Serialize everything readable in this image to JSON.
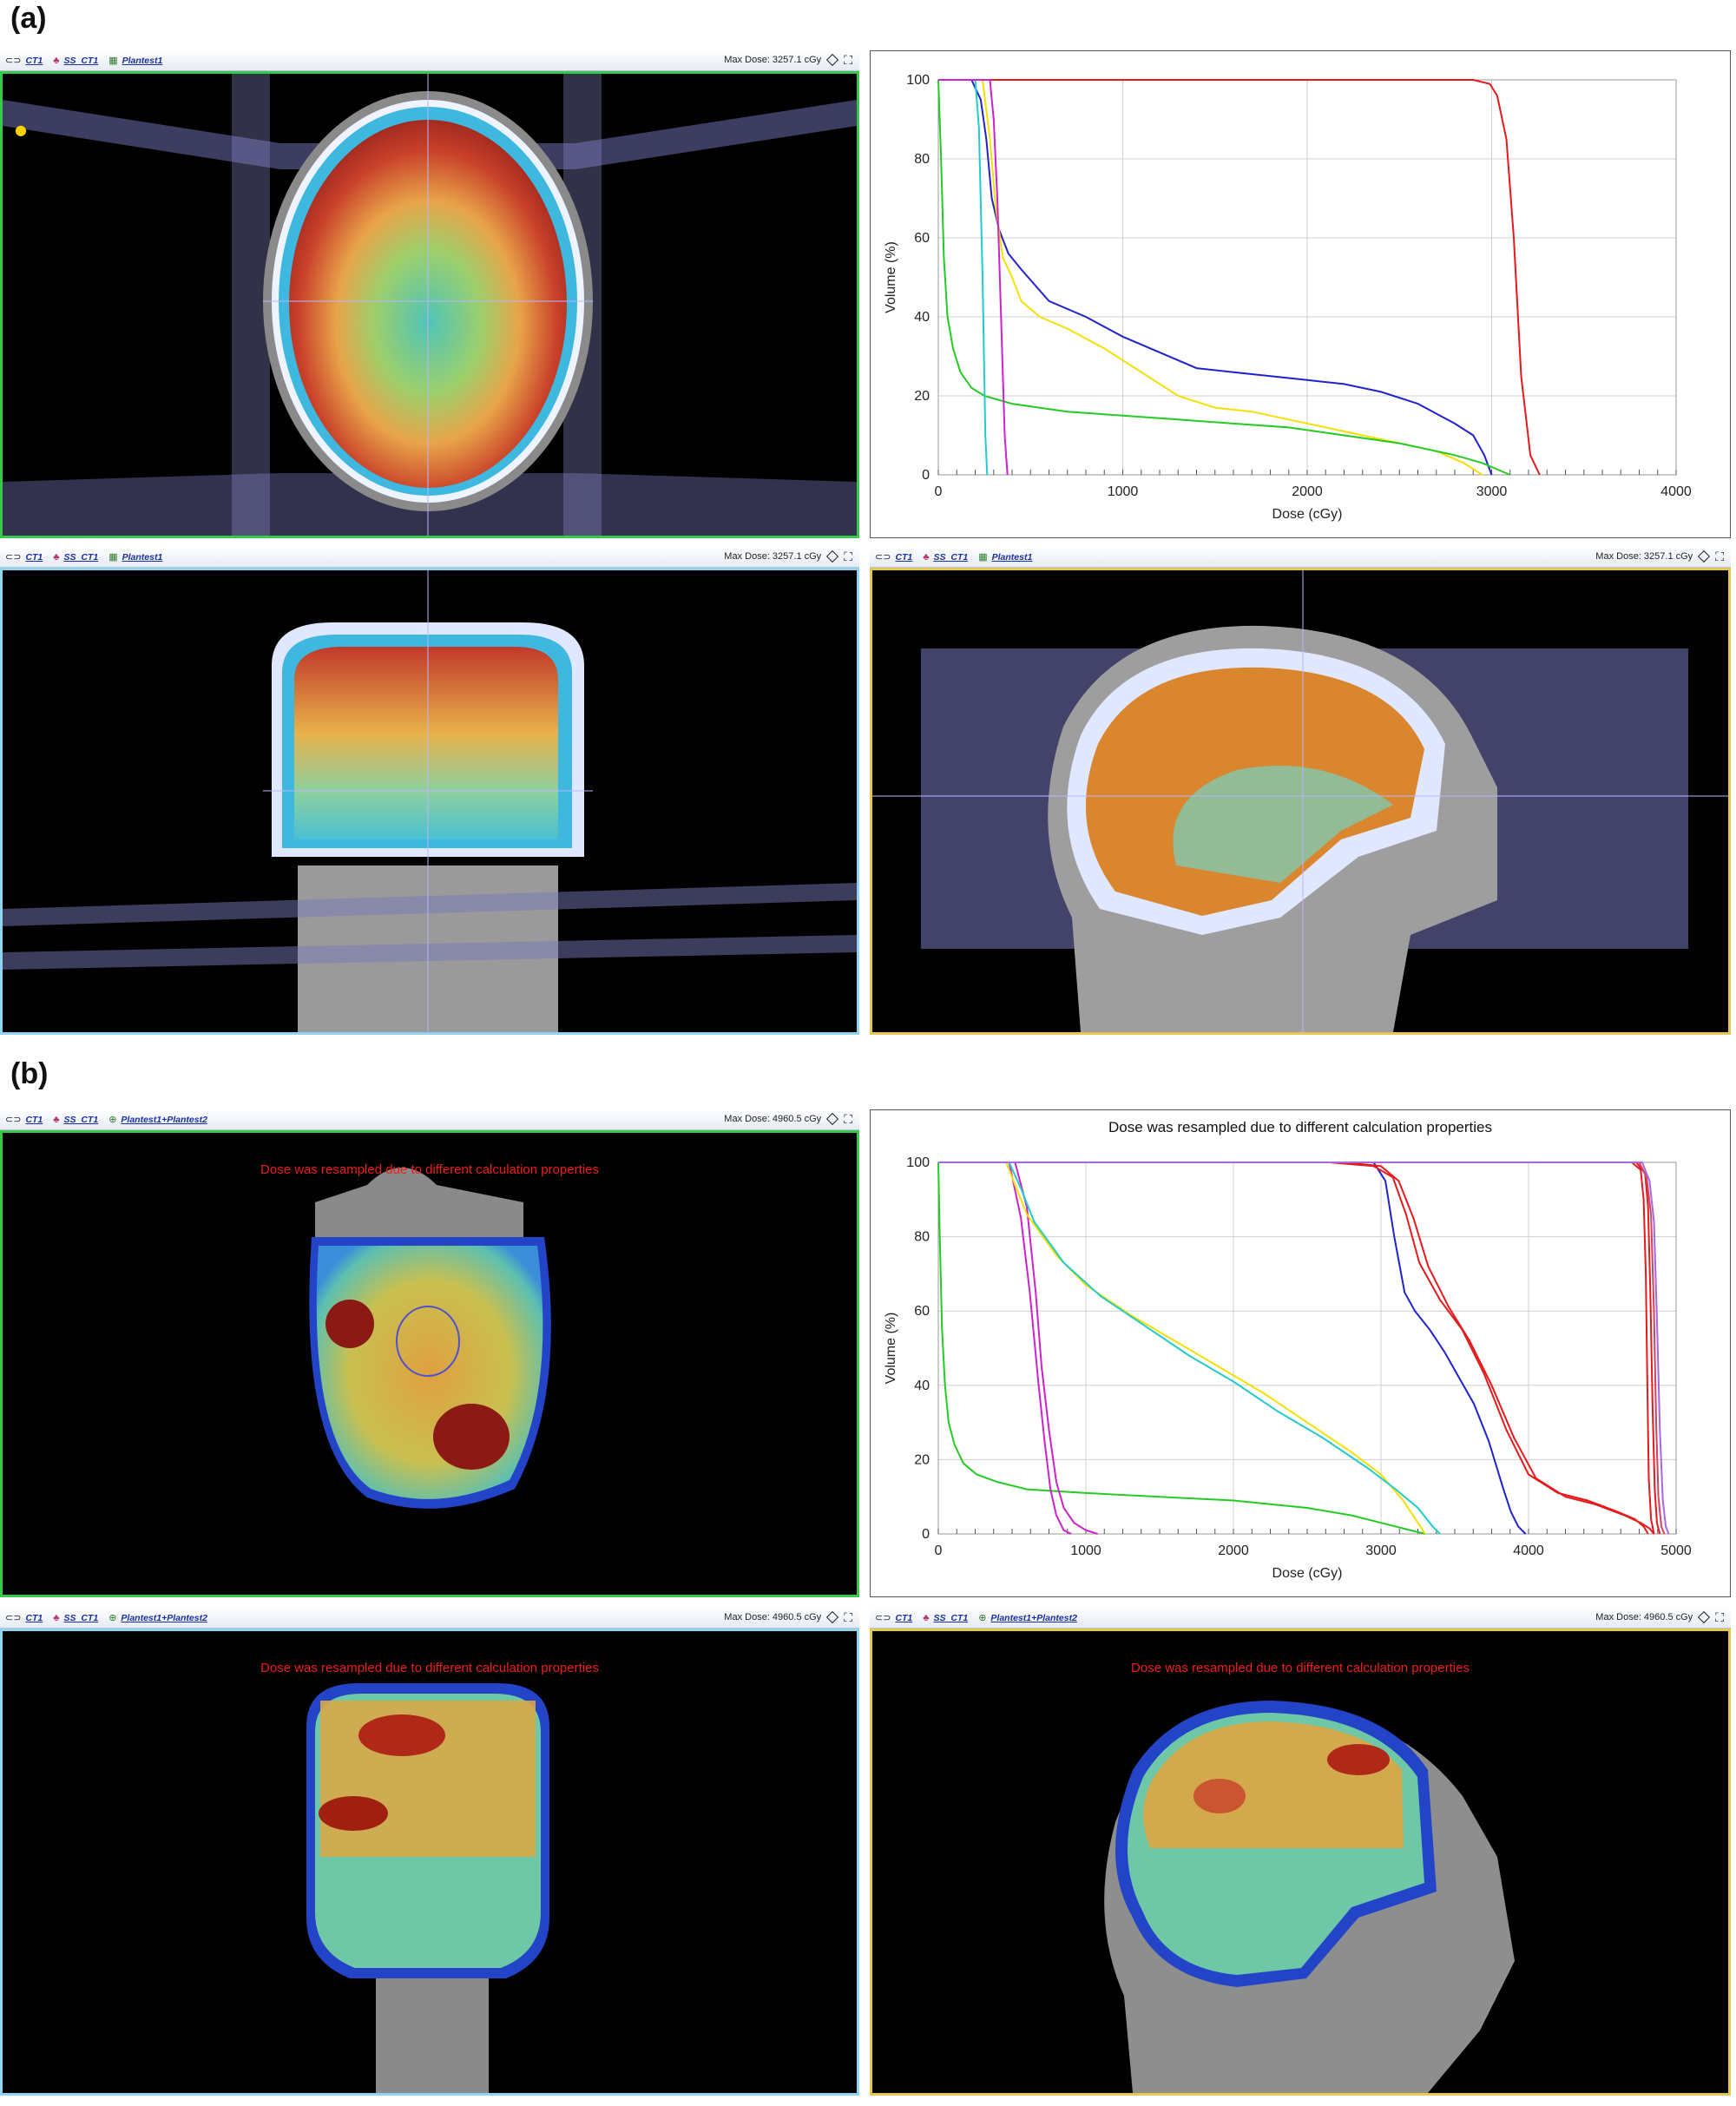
{
  "sections": [
    {
      "label": "(a)",
      "toolbar": {
        "ct": "CT1",
        "ss": "SS_CT1",
        "plan": "Plantest1",
        "max_dose": "Max Dose: 3257.1 cGy"
      },
      "chart_data": {
        "type": "line",
        "title": "",
        "xlabel": "Dose (cGy)",
        "ylabel": "Volume (%)",
        "xlim": [
          0,
          4000
        ],
        "ylim": [
          0,
          100
        ],
        "x_ticks": [
          0,
          1000,
          2000,
          3000,
          4000
        ],
        "y_ticks": [
          0,
          20,
          40,
          60,
          80,
          100
        ],
        "grid": true,
        "series": [
          {
            "color": "#e41a1c",
            "x": [
              0,
              2900,
              2990,
              3030,
              3080,
              3120,
              3160,
              3210,
              3260
            ],
            "y": [
              100,
              100,
              99,
              96,
              85,
              60,
              25,
              5,
              0
            ]
          },
          {
            "color": "#2222cc",
            "x": [
              0,
              180,
              230,
              260,
              290,
              330,
              380,
              450,
              600,
              800,
              1000,
              1200,
              1400,
              1600,
              1800,
              2000,
              2200,
              2400,
              2600,
              2800,
              2900,
              2960,
              3000
            ],
            "y": [
              100,
              100,
              95,
              85,
              70,
              62,
              56,
              52,
              44,
              40,
              35,
              31,
              27,
              26,
              25,
              24,
              23,
              21,
              18,
              13,
              10,
              5,
              0
            ]
          },
          {
            "color": "#f5e000",
            "x": [
              0,
              240,
              280,
              310,
              350,
              400,
              450,
              550,
              700,
              900,
              1100,
              1300,
              1500,
              1700,
              1900,
              2100,
              2300,
              2500,
              2700,
              2850,
              2950
            ],
            "y": [
              100,
              100,
              85,
              68,
              55,
              50,
              44,
              40,
              37,
              32,
              26,
              20,
              17,
              16,
              14,
              12,
              10,
              8,
              6,
              3,
              0
            ]
          },
          {
            "color": "#22cc22",
            "x": [
              0,
              15,
              30,
              50,
              80,
              120,
              180,
              250,
              400,
              700,
              1000,
              1300,
              1600,
              1900,
              2200,
              2500,
              2800,
              2950,
              3100
            ],
            "y": [
              100,
              80,
              55,
              40,
              32,
              26,
              22,
              20,
              18,
              16,
              15,
              14,
              13,
              12,
              10,
              8,
              5,
              3,
              0
            ]
          },
          {
            "color": "#22cccc",
            "x": [
              0,
              200,
              220,
              240,
              255,
              265
            ],
            "y": [
              100,
              100,
              88,
              50,
              10,
              0
            ]
          },
          {
            "color": "#cc22cc",
            "x": [
              0,
              280,
              300,
              320,
              340,
              360,
              375
            ],
            "y": [
              100,
              100,
              90,
              70,
              40,
              10,
              0
            ]
          }
        ]
      }
    },
    {
      "label": "(b)",
      "toolbar": {
        "ct": "CT1",
        "ss": "SS_CT1",
        "plan": "Plantest1+Plantest2",
        "max_dose": "Max Dose: 4960.5 cGy"
      },
      "message": "Dose was resampled due to different calculation properties",
      "chart_data": {
        "type": "line",
        "title": "Dose was resampled due to different calculation properties",
        "xlabel": "Dose (cGy)",
        "ylabel": "Volume (%)",
        "xlim": [
          0,
          5000
        ],
        "ylim": [
          0,
          100
        ],
        "x_ticks": [
          0,
          1000,
          2000,
          3000,
          4000,
          5000
        ],
        "y_ticks": [
          0,
          20,
          40,
          60,
          80,
          100
        ],
        "grid": true,
        "series": [
          {
            "color": "#22cc22",
            "x": [
              0,
              10,
              25,
              45,
              70,
              110,
              170,
              260,
              400,
              600,
              1000,
              1500,
              2000,
              2500,
              2800,
              3000,
              3150,
              3250,
              3300
            ],
            "y": [
              100,
              80,
              55,
              40,
              30,
              24,
              19,
              16,
              14,
              12,
              11,
              10,
              9,
              7,
              5,
              3,
              1.5,
              0.5,
              0
            ]
          },
          {
            "color": "#cc22cc",
            "x": [
              0,
              480,
              560,
              620,
              680,
              720,
              760,
              800,
              850,
              900
            ],
            "y": [
              100,
              100,
              85,
              65,
              40,
              25,
              12,
              5,
              1,
              0
            ]
          },
          {
            "color": "#cc22cc",
            "x": [
              0,
              520,
              600,
              660,
              700,
              750,
              800,
              850,
              920,
              1000,
              1080
            ],
            "y": [
              100,
              100,
              88,
              65,
              45,
              28,
              14,
              7,
              3,
              1,
              0
            ]
          },
          {
            "color": "#f5e000",
            "x": [
              0,
              460,
              520,
              600,
              800,
              1000,
              1300,
              1600,
              1900,
              2200,
              2500,
              2800,
              3000,
              3150,
              3250,
              3300
            ],
            "y": [
              100,
              100,
              94,
              86,
              75,
              67,
              59,
              52,
              45,
              38,
              30,
              22,
              16,
              9,
              3,
              0
            ]
          },
          {
            "color": "#22cccc",
            "x": [
              0,
              480,
              560,
              650,
              850,
              1100,
              1400,
              1700,
              2000,
              2300,
              2600,
              2900,
              3100,
              3250,
              3350,
              3400
            ],
            "y": [
              100,
              100,
              93,
              84,
              73,
              64,
              56,
              48,
              41,
              33,
              26,
              18,
              12,
              7,
              2,
              0
            ]
          },
          {
            "color": "#2222cc",
            "x": [
              0,
              2950,
              3030,
              3090,
              3160,
              3230,
              3330,
              3430,
              3530,
              3630,
              3730,
              3830,
              3880,
              3930,
              3980
            ],
            "y": [
              100,
              100,
              95,
              80,
              65,
              60,
              55,
              49,
              42,
              35,
              25,
              12,
              6,
              2,
              0
            ]
          },
          {
            "color": "#e41a1c",
            "x": [
              0,
              2650,
              2950,
              3080,
              3170,
              3260,
              3400,
              3550,
              3700,
              3850,
              4000,
              4200,
              4400,
              4600,
              4720,
              4780,
              4810
            ],
            "y": [
              100,
              100,
              99,
              96,
              86,
              73,
              63,
              55,
              43,
              28,
              16,
              11,
              9,
              6,
              4,
              2,
              0
            ]
          },
          {
            "color": "#e41a1c",
            "x": [
              0,
              2750,
              3000,
              3120,
              3220,
              3320,
              3460,
              3600,
              3750,
              3900,
              4050,
              4250,
              4450,
              4650,
              4760,
              4820,
              4850
            ],
            "y": [
              100,
              100,
              99,
              95,
              85,
              72,
              61,
              52,
              40,
              26,
              15,
              10,
              8,
              5,
              3,
              1.5,
              0
            ]
          },
          {
            "color": "#e41a1c",
            "x": [
              0,
              4700,
              4760,
              4780,
              4795,
              4805,
              4815,
              4830,
              4850
            ],
            "y": [
              100,
              100,
              98,
              90,
              70,
              40,
              15,
              4,
              0
            ]
          },
          {
            "color": "#e41a1c",
            "x": [
              0,
              4730,
              4790,
              4810,
              4825,
              4840,
              4855,
              4870,
              4890
            ],
            "y": [
              100,
              100,
              97,
              88,
              65,
              35,
              12,
              3,
              0
            ]
          },
          {
            "color": "#cc4466",
            "x": [
              0,
              4750,
              4800,
              4830,
              4850,
              4865,
              4880,
              4900,
              4920
            ],
            "y": [
              100,
              100,
              96,
              86,
              60,
              30,
              10,
              2,
              0
            ]
          },
          {
            "color": "#aa66dd",
            "x": [
              0,
              4770,
              4820,
              4850,
              4870,
              4890,
              4910,
              4930,
              4950
            ],
            "y": [
              100,
              100,
              95,
              84,
              58,
              28,
              9,
              2,
              0
            ]
          }
        ]
      }
    }
  ]
}
